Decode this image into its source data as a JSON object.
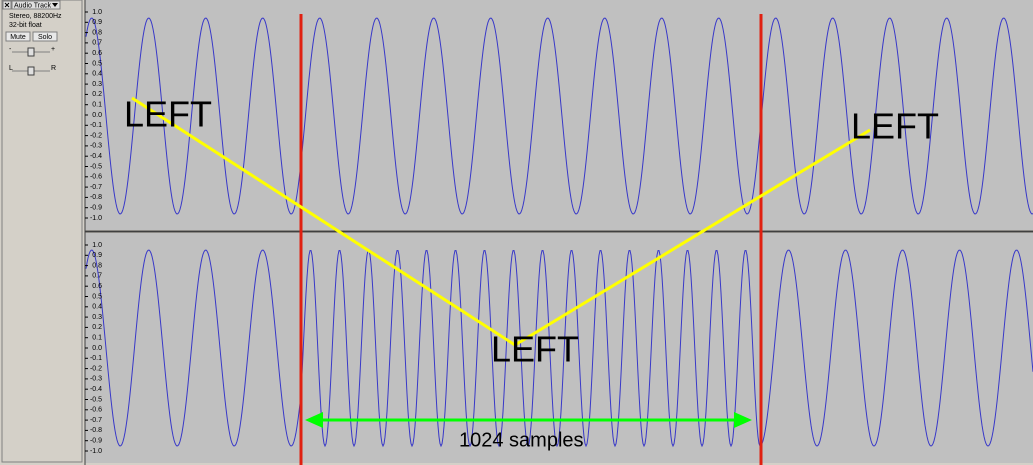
{
  "track": {
    "name": "Audio Track",
    "info": [
      "Stereo, 88200Hz",
      "32-bit float"
    ],
    "buttons": [
      "Mute",
      "Solo"
    ],
    "gain_minus": "-",
    "gain_plus": "+",
    "pan_left": "L",
    "pan_right": "R"
  },
  "axis_labels": [
    "1.0",
    "0.9",
    "0.8",
    "0.7",
    "0.6",
    "0.5",
    "0.4",
    "0.3",
    "0.2",
    "0.1",
    "0.0",
    "-0.1",
    "-0.2",
    "-0.3",
    "-0.4",
    "-0.5",
    "-0.6",
    "-0.7",
    "-0.8",
    "-0.9",
    "-1.0"
  ],
  "annotations": {
    "left_top": "LEFT",
    "right_top": "LEFT",
    "center": "LEFT",
    "span": "1024 samples"
  }
}
